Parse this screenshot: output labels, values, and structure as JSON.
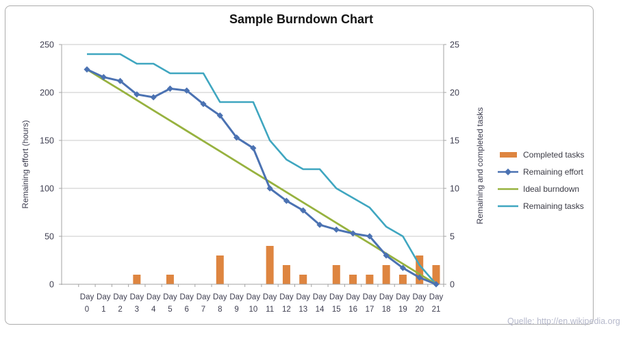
{
  "title": "Sample Burndown Chart",
  "source_note": "Quelle: http://en.wikipedia.org",
  "axes": {
    "left_label": "Remaining effort (hours)",
    "right_label": "Remaining and  completed tasks",
    "left_ticks": [
      0,
      50,
      100,
      150,
      200,
      250
    ],
    "right_ticks": [
      0,
      5,
      10,
      15,
      20,
      25
    ]
  },
  "legend": [
    {
      "label": "Completed tasks",
      "color": "#DE8540",
      "swatch": "bar"
    },
    {
      "label": "Remaining effort",
      "color": "#4B72B2",
      "swatch": "line-diamond"
    },
    {
      "label": "Ideal burndown",
      "color": "#97B23F",
      "swatch": "line"
    },
    {
      "label": "Remaining tasks",
      "color": "#3FA6C0",
      "swatch": "line"
    }
  ],
  "colors": {
    "gridline": "#C9C9C9",
    "axis_line": "#A3A3A3",
    "tick_text": "#3E3E50"
  },
  "chart_data": {
    "type": "bar+line combo",
    "title": "Sample Burndown Chart",
    "categories": [
      "Day 0",
      "Day 1",
      "Day 2",
      "Day 3",
      "Day 4",
      "Day 5",
      "Day 6",
      "Day 7",
      "Day 8",
      "Day 9",
      "Day 10",
      "Day 11",
      "Day 12",
      "Day 13",
      "Day 14",
      "Day 15",
      "Day 16",
      "Day 17",
      "Day 18",
      "Day 19",
      "Day 20",
      "Day 21"
    ],
    "left_axis": {
      "label": "Remaining effort (hours)",
      "range": [
        0,
        250
      ],
      "step": 50
    },
    "right_axis": {
      "label": "Remaining and  completed tasks",
      "range": [
        0,
        25
      ],
      "step": 5
    },
    "grid": true,
    "legend_position": "right",
    "series": [
      {
        "name": "Completed tasks",
        "type": "bar",
        "axis": "right",
        "values": [
          0,
          0,
          0,
          1,
          0,
          1,
          0,
          0,
          3,
          0,
          0,
          4,
          2,
          1,
          0,
          2,
          1,
          1,
          2,
          1,
          3,
          2
        ]
      },
      {
        "name": "Remaining effort",
        "type": "line",
        "axis": "left",
        "marker": "diamond",
        "values": [
          224,
          216,
          212,
          198,
          195,
          204,
          202,
          188,
          176,
          153,
          142,
          100,
          87,
          77,
          62,
          57,
          53,
          50,
          30,
          17,
          7,
          0
        ]
      },
      {
        "name": "Ideal burndown",
        "type": "line",
        "axis": "left",
        "values": [
          224,
          213.3,
          202.7,
          192,
          181.3,
          170.7,
          160,
          149.3,
          138.7,
          128,
          117.3,
          106.7,
          96,
          85.3,
          74.7,
          64,
          53.3,
          42.7,
          32,
          21.3,
          10.7,
          0
        ]
      },
      {
        "name": "Remaining tasks",
        "type": "line",
        "axis": "right",
        "values": [
          24,
          24,
          24,
          23,
          23,
          22,
          22,
          22,
          19,
          19,
          19,
          15,
          13,
          12,
          12,
          10,
          9,
          8,
          6,
          5,
          2,
          0
        ]
      }
    ]
  }
}
